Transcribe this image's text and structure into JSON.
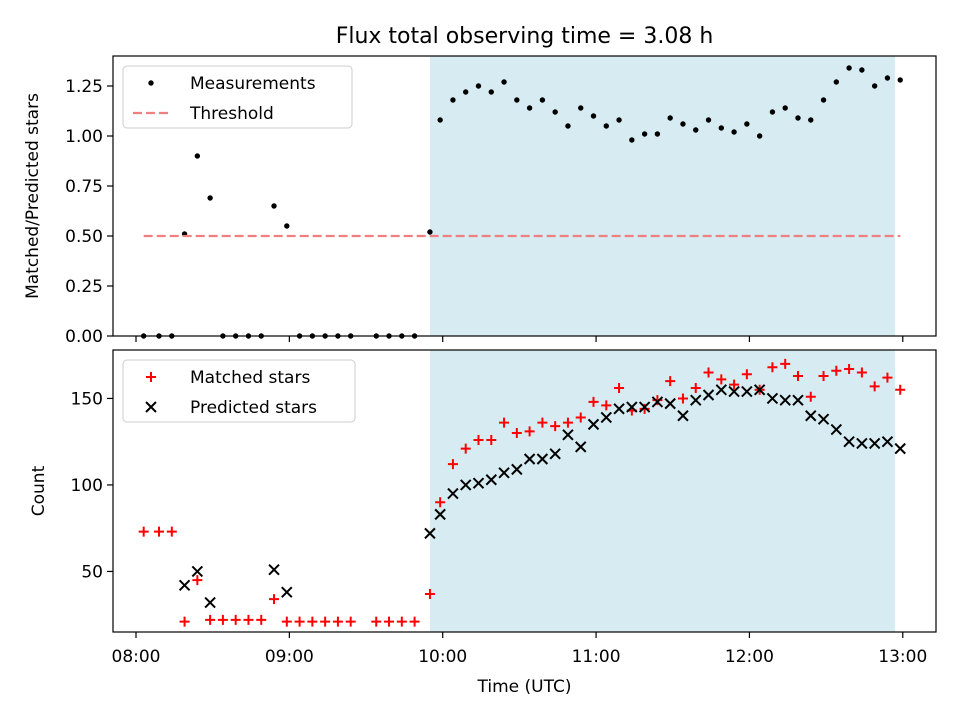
{
  "chart_data": [
    {
      "type": "scatter",
      "title": "Flux total observing time = 3.08 h",
      "xlabel": "",
      "ylabel": "Matched/Predicted stars",
      "ylim": [
        0,
        1.4
      ],
      "yticks": [
        0.0,
        0.25,
        0.5,
        0.75,
        1.0,
        1.25
      ],
      "ytick_labels": [
        "0.00",
        "0.25",
        "0.50",
        "0.75",
        "1.00",
        "1.25"
      ],
      "xlim": [
        "07:51",
        "13:13"
      ],
      "xticks": [
        "08:00",
        "09:00",
        "10:00",
        "11:00",
        "12:00",
        "13:00"
      ],
      "xtick_labels": [
        "",
        "",
        "",
        "",
        "",
        ""
      ],
      "shaded_region": {
        "x": [
          "09:55",
          "12:57"
        ],
        "color": "#add8e6",
        "alpha": 0.5
      },
      "legend": {
        "placement": "top-left",
        "entries": [
          "Measurements",
          "Threshold"
        ]
      },
      "series": [
        {
          "name": "Measurements",
          "marker": "dot",
          "color": "#000000",
          "points": [
            [
              "08:03",
              0.0
            ],
            [
              "08:09",
              0.0
            ],
            [
              "08:14",
              0.0
            ],
            [
              "08:19",
              0.51
            ],
            [
              "08:24",
              0.9
            ],
            [
              "08:29",
              0.69
            ],
            [
              "08:34",
              0.0
            ],
            [
              "08:39",
              0.0
            ],
            [
              "08:44",
              0.0
            ],
            [
              "08:49",
              0.0
            ],
            [
              "08:54",
              0.65
            ],
            [
              "08:59",
              0.55
            ],
            [
              "09:04",
              0.0
            ],
            [
              "09:09",
              0.0
            ],
            [
              "09:14",
              0.0
            ],
            [
              "09:19",
              0.0
            ],
            [
              "09:24",
              0.0
            ],
            [
              "09:34",
              0.0
            ],
            [
              "09:39",
              0.0
            ],
            [
              "09:44",
              0.0
            ],
            [
              "09:49",
              0.0
            ],
            [
              "09:55",
              0.52
            ],
            [
              "09:59",
              1.08
            ],
            [
              "10:04",
              1.18
            ],
            [
              "10:09",
              1.22
            ],
            [
              "10:14",
              1.25
            ],
            [
              "10:19",
              1.22
            ],
            [
              "10:24",
              1.27
            ],
            [
              "10:29",
              1.18
            ],
            [
              "10:34",
              1.14
            ],
            [
              "10:39",
              1.18
            ],
            [
              "10:44",
              1.12
            ],
            [
              "10:49",
              1.05
            ],
            [
              "10:54",
              1.14
            ],
            [
              "10:59",
              1.1
            ],
            [
              "11:04",
              1.05
            ],
            [
              "11:09",
              1.08
            ],
            [
              "11:14",
              0.98
            ],
            [
              "11:19",
              1.01
            ],
            [
              "11:24",
              1.01
            ],
            [
              "11:29",
              1.09
            ],
            [
              "11:34",
              1.06
            ],
            [
              "11:39",
              1.03
            ],
            [
              "11:44",
              1.08
            ],
            [
              "11:49",
              1.04
            ],
            [
              "11:54",
              1.02
            ],
            [
              "11:59",
              1.06
            ],
            [
              "12:04",
              1.0
            ],
            [
              "12:09",
              1.12
            ],
            [
              "12:14",
              1.14
            ],
            [
              "12:19",
              1.09
            ],
            [
              "12:24",
              1.08
            ],
            [
              "12:29",
              1.18
            ],
            [
              "12:34",
              1.27
            ],
            [
              "12:39",
              1.34
            ],
            [
              "12:44",
              1.33
            ],
            [
              "12:49",
              1.25
            ],
            [
              "12:54",
              1.29
            ],
            [
              "12:59",
              1.28
            ]
          ]
        },
        {
          "name": "Threshold",
          "line": "dashed",
          "color": "#f08080",
          "points": [
            [
              "08:03",
              0.5
            ],
            [
              "12:59",
              0.5
            ]
          ]
        }
      ]
    },
    {
      "type": "scatter",
      "title": "",
      "xlabel": "Time (UTC)",
      "ylabel": "Count",
      "ylim": [
        15,
        178
      ],
      "yticks": [
        50,
        100,
        150
      ],
      "ytick_labels": [
        "50",
        "100",
        "150"
      ],
      "xlim": [
        "07:51",
        "13:13"
      ],
      "xticks": [
        "08:00",
        "09:00",
        "10:00",
        "11:00",
        "12:00",
        "13:00"
      ],
      "xtick_labels": [
        "08:00",
        "09:00",
        "10:00",
        "11:00",
        "12:00",
        "13:00"
      ],
      "shaded_region": {
        "x": [
          "09:55",
          "12:57"
        ],
        "color": "#add8e6",
        "alpha": 0.5
      },
      "legend": {
        "placement": "top-left",
        "entries": [
          "Matched stars",
          "Predicted stars"
        ]
      },
      "series": [
        {
          "name": "Matched stars",
          "marker": "plus",
          "color": "#ff0000",
          "points": [
            [
              "08:03",
              73
            ],
            [
              "08:09",
              73
            ],
            [
              "08:14",
              73
            ],
            [
              "08:19",
              21
            ],
            [
              "08:24",
              45
            ],
            [
              "08:29",
              22
            ],
            [
              "08:34",
              22
            ],
            [
              "08:39",
              22
            ],
            [
              "08:44",
              22
            ],
            [
              "08:49",
              22
            ],
            [
              "08:54",
              34
            ],
            [
              "08:59",
              21
            ],
            [
              "09:04",
              21
            ],
            [
              "09:09",
              21
            ],
            [
              "09:14",
              21
            ],
            [
              "09:19",
              21
            ],
            [
              "09:24",
              21
            ],
            [
              "09:34",
              21
            ],
            [
              "09:39",
              21
            ],
            [
              "09:44",
              21
            ],
            [
              "09:49",
              21
            ],
            [
              "09:55",
              37
            ],
            [
              "09:59",
              90
            ],
            [
              "10:04",
              112
            ],
            [
              "10:09",
              121
            ],
            [
              "10:14",
              126
            ],
            [
              "10:19",
              126
            ],
            [
              "10:24",
              136
            ],
            [
              "10:29",
              130
            ],
            [
              "10:34",
              131
            ],
            [
              "10:39",
              136
            ],
            [
              "10:44",
              134
            ],
            [
              "10:49",
              136
            ],
            [
              "10:54",
              139
            ],
            [
              "10:59",
              148
            ],
            [
              "11:04",
              146
            ],
            [
              "11:09",
              156
            ],
            [
              "11:14",
              143
            ],
            [
              "11:19",
              144
            ],
            [
              "11:24",
              149
            ],
            [
              "11:29",
              160
            ],
            [
              "11:34",
              150
            ],
            [
              "11:39",
              156
            ],
            [
              "11:44",
              165
            ],
            [
              "11:49",
              161
            ],
            [
              "11:54",
              158
            ],
            [
              "11:59",
              164
            ],
            [
              "12:04",
              155
            ],
            [
              "12:09",
              168
            ],
            [
              "12:14",
              170
            ],
            [
              "12:19",
              163
            ],
            [
              "12:24",
              151
            ],
            [
              "12:29",
              163
            ],
            [
              "12:34",
              166
            ],
            [
              "12:39",
              167
            ],
            [
              "12:44",
              165
            ],
            [
              "12:49",
              157
            ],
            [
              "12:54",
              162
            ],
            [
              "12:59",
              155
            ]
          ]
        },
        {
          "name": "Predicted stars",
          "marker": "x",
          "color": "#000000",
          "points": [
            [
              "08:19",
              42
            ],
            [
              "08:24",
              50
            ],
            [
              "08:29",
              32
            ],
            [
              "08:54",
              51
            ],
            [
              "08:59",
              38
            ],
            [
              "09:55",
              72
            ],
            [
              "09:59",
              83
            ],
            [
              "10:04",
              95
            ],
            [
              "10:09",
              100
            ],
            [
              "10:14",
              101
            ],
            [
              "10:19",
              103
            ],
            [
              "10:24",
              107
            ],
            [
              "10:29",
              109
            ],
            [
              "10:34",
              115
            ],
            [
              "10:39",
              115
            ],
            [
              "10:44",
              118
            ],
            [
              "10:49",
              129
            ],
            [
              "10:54",
              122
            ],
            [
              "10:59",
              135
            ],
            [
              "11:04",
              139
            ],
            [
              "11:09",
              144
            ],
            [
              "11:14",
              145
            ],
            [
              "11:19",
              145
            ],
            [
              "11:24",
              148
            ],
            [
              "11:29",
              147
            ],
            [
              "11:34",
              140
            ],
            [
              "11:39",
              149
            ],
            [
              "11:44",
              152
            ],
            [
              "11:49",
              155
            ],
            [
              "11:54",
              154
            ],
            [
              "11:59",
              154
            ],
            [
              "12:04",
              155
            ],
            [
              "12:09",
              150
            ],
            [
              "12:14",
              149
            ],
            [
              "12:19",
              149
            ],
            [
              "12:24",
              140
            ],
            [
              "12:29",
              138
            ],
            [
              "12:34",
              132
            ],
            [
              "12:39",
              125
            ],
            [
              "12:44",
              124
            ],
            [
              "12:49",
              124
            ],
            [
              "12:54",
              125
            ],
            [
              "12:59",
              121
            ]
          ]
        }
      ]
    }
  ]
}
